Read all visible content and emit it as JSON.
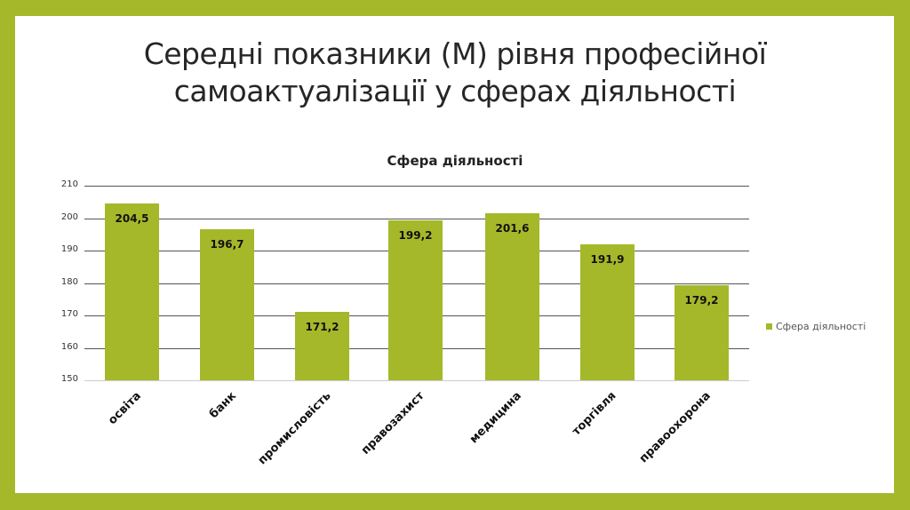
{
  "slide": {
    "title_lines": [
      "Середні показники (М) рівня професійної",
      "самоактуалізації у сферах діяльності"
    ],
    "frame_color": "#a5b82a"
  },
  "chart_data": {
    "type": "bar",
    "title": "Сфера діяльності",
    "categories": [
      "освіта",
      "банк",
      "промисловість",
      "правозахист",
      "медицина",
      "торгівля",
      "правоохорона"
    ],
    "series": [
      {
        "name": "Сфера діяльності",
        "values": [
          204.5,
          196.7,
          171.2,
          199.2,
          201.6,
          191.9,
          179.2
        ],
        "color": "#a5b82a"
      }
    ],
    "value_labels": [
      "204,5",
      "196,7",
      "171,2",
      "199,2",
      "201,6",
      "191,9",
      "179,2"
    ],
    "xlabel": "",
    "ylabel": "",
    "ylim": [
      150,
      210
    ],
    "yticks": [
      150,
      160,
      170,
      180,
      190,
      200,
      210
    ],
    "grid": true,
    "legend_position": "right"
  }
}
